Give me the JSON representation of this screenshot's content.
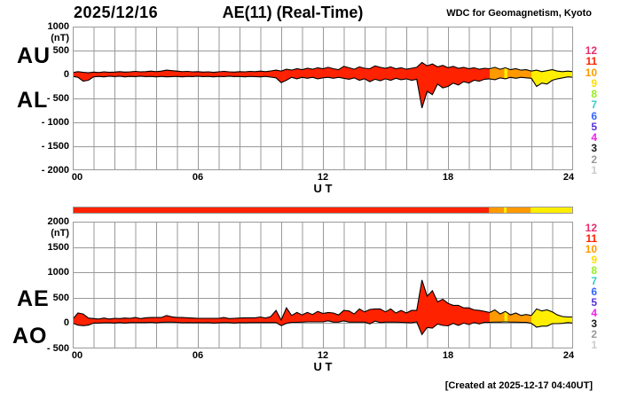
{
  "header": {
    "date": "2025/12/16",
    "title": "AE(11) (Real-Time)",
    "org": "WDC for Geomagnetism, Kyoto"
  },
  "footer": {
    "created": "[Created at 2025-12-17 04:40UT]"
  },
  "colors": {
    "grid": "#999999",
    "trace_outline": "#000000",
    "station_fill": {
      "11": "#FF2200",
      "10": "#FF9900",
      "9": "#FFEE00"
    }
  },
  "station_scale": [
    {
      "label": "12",
      "color": "#E62E6B"
    },
    {
      "label": "11",
      "color": "#FF2200"
    },
    {
      "label": "10",
      "color": "#FF9900"
    },
    {
      "label": "9",
      "color": "#FFDD00"
    },
    {
      "label": "8",
      "color": "#99EE22"
    },
    {
      "label": "7",
      "color": "#33CCCC"
    },
    {
      "label": "6",
      "color": "#3366FF"
    },
    {
      "label": "5",
      "color": "#5533DD"
    },
    {
      "label": "4",
      "color": "#EE22EE"
    },
    {
      "label": "3",
      "color": "#1A1A1A"
    },
    {
      "label": "2",
      "color": "#999999"
    },
    {
      "label": "1",
      "color": "#CCCCCC"
    }
  ],
  "quality_segments": [
    {
      "start_hour": 0,
      "end_hour": 20,
      "stations": "11"
    },
    {
      "start_hour": 20,
      "end_hour": 20.7,
      "stations": "10"
    },
    {
      "start_hour": 20.7,
      "end_hour": 20.85,
      "stations": "9"
    },
    {
      "start_hour": 20.85,
      "end_hour": 22,
      "stations": "10"
    },
    {
      "start_hour": 22,
      "end_hour": 24,
      "stations": "9"
    }
  ],
  "chart_data": [
    {
      "type": "area",
      "title": "AU / AL indices",
      "xlabel": "U T",
      "y_unit": "(nT)",
      "xlim": [
        0,
        24
      ],
      "ylim": [
        -2000,
        1000
      ],
      "x_tick_labels": [
        "00",
        "06",
        "12",
        "18",
        "24"
      ],
      "x_tick_hours": [
        0,
        6,
        12,
        18,
        24
      ],
      "y_ticks": [
        1000,
        500,
        0,
        -500,
        -1000,
        -1500,
        -2000
      ],
      "y_tick_labels": [
        "1000",
        "500",
        "0",
        "- 500",
        "- 1000",
        "- 1500",
        "- 2000"
      ],
      "x_start": 0,
      "x_step": 0.25,
      "series": [
        {
          "name": "AU",
          "values": [
            40,
            60,
            45,
            35,
            50,
            40,
            55,
            45,
            50,
            60,
            50,
            55,
            65,
            55,
            60,
            70,
            60,
            70,
            90,
            80,
            70,
            60,
            65,
            55,
            60,
            50,
            55,
            45,
            55,
            65,
            55,
            50,
            60,
            55,
            65,
            60,
            70,
            60,
            75,
            90,
            70,
            110,
            90,
            120,
            100,
            130,
            110,
            140,
            120,
            150,
            120,
            100,
            170,
            140,
            110,
            160,
            130,
            120,
            180,
            150,
            130,
            160,
            120,
            140,
            110,
            130,
            150,
            250,
            180,
            220,
            160,
            190,
            140,
            170,
            130,
            150,
            120,
            140,
            110,
            130,
            120,
            150,
            110,
            140,
            100,
            120,
            90,
            100,
            70,
            90,
            60,
            80,
            100,
            70,
            60,
            70,
            60
          ]
        },
        {
          "name": "AL",
          "values": [
            -40,
            -60,
            -140,
            -120,
            -50,
            -40,
            -50,
            -35,
            -45,
            -35,
            -50,
            -40,
            -45,
            -35,
            -45,
            -40,
            -50,
            -40,
            -50,
            -45,
            -40,
            -50,
            -40,
            -45,
            -35,
            -45,
            -40,
            -50,
            -40,
            -45,
            -35,
            -45,
            -40,
            -50,
            -40,
            -45,
            -50,
            -40,
            -55,
            -70,
            -170,
            -120,
            -60,
            -90,
            -60,
            -80,
            -60,
            -90,
            -70,
            -60,
            -80,
            -60,
            -80,
            -100,
            -70,
            -120,
            -90,
            -150,
            -100,
            -130,
            -90,
            -120,
            -80,
            -110,
            -90,
            -120,
            -100,
            -700,
            -350,
            -420,
            -200,
            -280,
            -250,
            -180,
            -220,
            -150,
            -180,
            -120,
            -140,
            -100,
            -90,
            -110,
            -70,
            -90,
            -60,
            -80,
            -60,
            -70,
            -80,
            -250,
            -180,
            -200,
            -120,
            -90,
            -70,
            -50,
            -60
          ]
        }
      ]
    },
    {
      "type": "area",
      "title": "AE / AO indices",
      "xlabel": "U T",
      "y_unit": "(nT)",
      "xlim": [
        0,
        24
      ],
      "ylim": [
        -500,
        2000
      ],
      "x_tick_labels": [
        "00",
        "06",
        "12",
        "18",
        "24"
      ],
      "x_tick_hours": [
        0,
        6,
        12,
        18,
        24
      ],
      "y_ticks": [
        2000,
        1500,
        1000,
        500,
        0,
        -500
      ],
      "y_tick_labels": [
        "2000",
        "1500",
        "1000",
        "500",
        "0",
        "- 500"
      ],
      "x_start": 0,
      "x_step": 0.25,
      "series": [
        {
          "name": "AE",
          "values": [
            80,
            200,
            180,
            100,
            90,
            80,
            100,
            80,
            95,
            90,
            100,
            95,
            110,
            90,
            105,
            110,
            110,
            110,
            150,
            125,
            110,
            110,
            105,
            100,
            95,
            95,
            95,
            95,
            95,
            110,
            90,
            95,
            100,
            105,
            105,
            105,
            120,
            100,
            130,
            250,
            60,
            300,
            150,
            210,
            160,
            210,
            170,
            230,
            190,
            210,
            200,
            160,
            250,
            240,
            180,
            280,
            220,
            270,
            280,
            280,
            220,
            280,
            200,
            250,
            200,
            250,
            250,
            850,
            530,
            640,
            420,
            470,
            390,
            350,
            350,
            300,
            300,
            260,
            250,
            230,
            210,
            260,
            180,
            230,
            160,
            200,
            150,
            170,
            150,
            280,
            240,
            260,
            220,
            160,
            130,
            120,
            120
          ]
        },
        {
          "name": "AO",
          "values": [
            0,
            -40,
            -50,
            -40,
            0,
            0,
            5,
            5,
            0,
            10,
            0,
            10,
            10,
            10,
            10,
            15,
            5,
            15,
            20,
            20,
            15,
            5,
            10,
            5,
            10,
            5,
            10,
            0,
            5,
            10,
            10,
            0,
            10,
            5,
            10,
            10,
            10,
            10,
            10,
            10,
            -50,
            -5,
            15,
            15,
            20,
            25,
            25,
            25,
            25,
            45,
            20,
            20,
            45,
            20,
            20,
            20,
            20,
            -15,
            40,
            10,
            20,
            20,
            20,
            15,
            10,
            5,
            25,
            -225,
            -85,
            -100,
            -20,
            -45,
            -55,
            -5,
            -45,
            0,
            -30,
            10,
            -15,
            15,
            15,
            20,
            20,
            25,
            20,
            20,
            15,
            15,
            -5,
            -80,
            -60,
            -60,
            -10,
            -10,
            -5,
            10,
            0
          ]
        }
      ]
    }
  ]
}
